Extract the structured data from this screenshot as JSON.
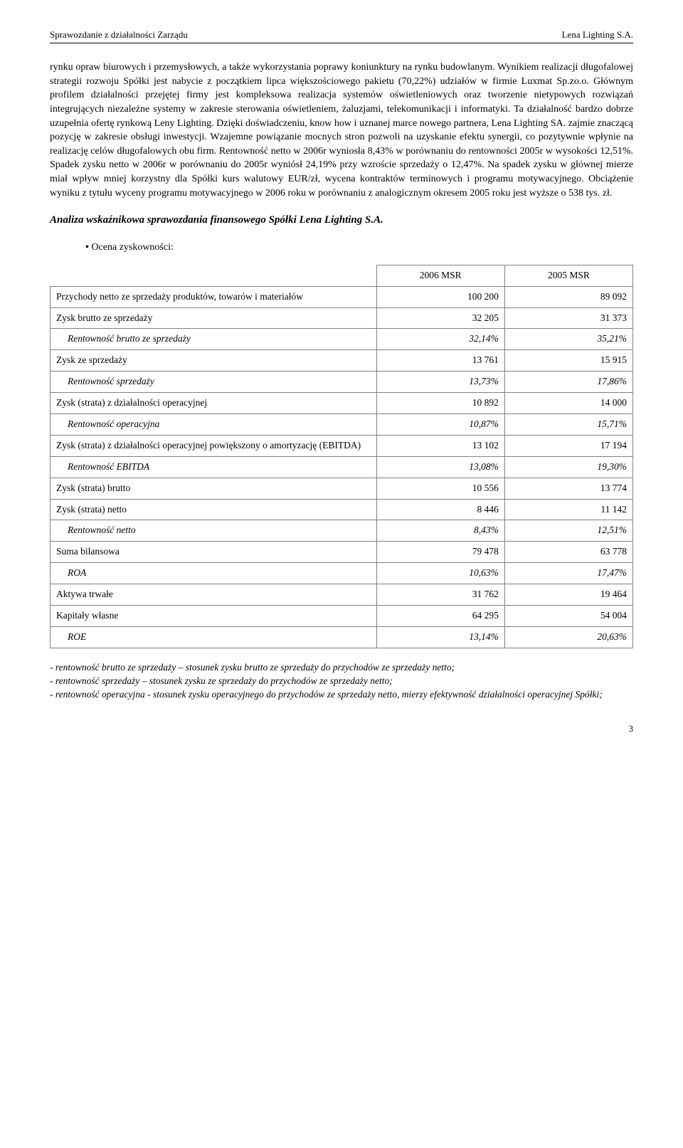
{
  "header": {
    "left": "Sprawozdanie z działalności Zarządu",
    "right": "Lena Lighting S.A."
  },
  "body_para": "rynku opraw biurowych i przemysłowych, a także wykorzystania poprawy koniunktury na rynku budowlanym.\nWynikiem realizacji długofalowej strategii rozwoju Spółki jest nabycie z początkiem lipca większościowego pakietu (70,22%) udziałów w firmie Luxmat Sp.zo.o.\nGłównym profilem działalności przejętej firmy jest kompleksowa realizacja systemów oświetleniowych oraz tworzenie nietypowych rozwiązań integrujących niezależne systemy w zakresie sterowania oświetleniem, żaluzjami, telekomunikacji i informatyki. Ta działalność bardzo dobrze uzupełnia ofertę rynkową Leny Lighting. Dzięki doświadczeniu, know how i uznanej marce nowego partnera, Lena Lighting SA. zajmie znaczącą pozycję w zakresie obsługi inwestycji. Wzajemne powiązanie mocnych stron pozwoli na uzyskanie efektu synergii, co pozytywnie wpłynie na realizację celów długofalowych obu firm.\nRentowność netto w 2006r wyniosła 8,43% w porównaniu do rentowności 2005r w wysokości 12,51%. Spadek zysku netto w 2006r w porównaniu do 2005r wyniósł 24,19% przy wzroście sprzedaży o 12,47%. Na spadek zysku w głównej mierze miał wpływ mniej korzystny dla Spółki kurs walutowy EUR/zł, wycena kontraktów terminowych i programu motywacyjnego. Obciążenie wyniku z tytułu wyceny programu motywacyjnego w 2006 roku w porównaniu z analogicznym okresem 2005 roku jest wyższe o 538 tys. zł.",
  "section_title": "Analiza wskaźnikowa sprawozdania finansowego Spółki Lena Lighting S.A.",
  "bullet_text": "Ocena zyskowności:",
  "table": {
    "col_headers": [
      "2006 MSR",
      "2005 MSR"
    ],
    "rows": [
      {
        "label": "Przychody netto ze sprzedaży produktów, towarów i materiałów",
        "v1": "100 200",
        "v2": "89 092",
        "italic": false
      },
      {
        "label": "Zysk brutto ze sprzedaży",
        "v1": "32 205",
        "v2": "31 373",
        "italic": false
      },
      {
        "label": "Rentowność brutto ze sprzedaży",
        "v1": "32,14%",
        "v2": "35,21%",
        "italic": true
      },
      {
        "label": "Zysk ze sprzedaży",
        "v1": "13 761",
        "v2": "15 915",
        "italic": false
      },
      {
        "label": "Rentowność sprzedaży",
        "v1": "13,73%",
        "v2": "17,86%",
        "italic": true
      },
      {
        "label": "Zysk (strata) z działalności operacyjnej",
        "v1": "10 892",
        "v2": "14 000",
        "italic": false
      },
      {
        "label": "Rentowność operacyjna",
        "v1": "10,87%",
        "v2": "15,71%",
        "italic": true
      },
      {
        "label": "Zysk (strata) z działalności operacyjnej powiększony o amortyzację (EBITDA)",
        "v1": "13 102",
        "v2": "17 194",
        "italic": false
      },
      {
        "label": "Rentowność EBITDA",
        "v1": "13,08%",
        "v2": "19,30%",
        "italic": true
      },
      {
        "label": "Zysk (strata) brutto",
        "v1": "10 556",
        "v2": "13 774",
        "italic": false
      },
      {
        "label": "Zysk (strata) netto",
        "v1": "8 446",
        "v2": "11 142",
        "italic": false
      },
      {
        "label": "Rentowność netto",
        "v1": "8,43%",
        "v2": "12,51%",
        "italic": true
      },
      {
        "label": "Suma bilansowa",
        "v1": "79 478",
        "v2": "63 778",
        "italic": false
      },
      {
        "label": "ROA",
        "v1": "10,63%",
        "v2": "17,47%",
        "italic": true
      },
      {
        "label": "Aktywa trwałe",
        "v1": "31 762",
        "v2": "19 464",
        "italic": false
      },
      {
        "label": "Kapitały własne",
        "v1": "64 295",
        "v2": "54 004",
        "italic": false
      },
      {
        "label": "ROE",
        "v1": "13,14%",
        "v2": "20,63%",
        "italic": true
      }
    ]
  },
  "footnotes": "- rentowność brutto ze sprzedaży – stosunek zysku brutto ze sprzedaży do przychodów ze sprzedaży netto;\n- rentowność sprzedaży – stosunek zysku ze sprzedaży do przychodów ze sprzedaży netto;\n- rentowność operacyjna - stosunek zysku operacyjnego do przychodów ze sprzedaży netto, mierzy efektywność działalności operacyjnej Spółki;",
  "page_number": "3"
}
